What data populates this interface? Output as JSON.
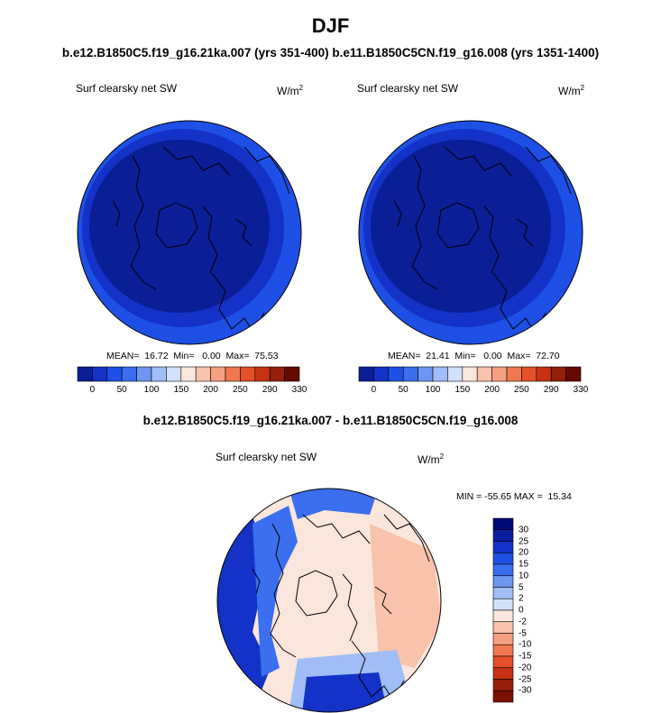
{
  "figure": {
    "title": "DJF",
    "case_line": "b.e12.B1850C5.f19_g16.21ka.007 (yrs 351-400) b.e11.B1850C5CN.f19_g16.008 (yrs 1351-1400)",
    "diff_title": "b.e12.B1850C5.f19_g16.21ka.007 - b.e11.B1850C5CN.f19_g16.008"
  },
  "panels": {
    "left": {
      "variable": "Surf clearsky net SW",
      "units_base": "W/m",
      "units_exp": "2",
      "stats": "MEAN=  16.72  Min=   0.00  Max=  75.53"
    },
    "right": {
      "variable": "Surf clearsky net SW",
      "units_base": "W/m",
      "units_exp": "2",
      "stats": "MEAN=  21.41  Min=   0.00  Max=  72.70"
    },
    "diff": {
      "variable": "Surf clearsky net SW",
      "units_base": "W/m",
      "units_exp": "2",
      "stats": "MIN = -55.65 MAX =  15.34"
    }
  },
  "colorbar_main": {
    "colors": [
      "#0a1e96",
      "#1432c8",
      "#1e50e6",
      "#3c6ef0",
      "#6e96f0",
      "#a0bef5",
      "#d2e1fa",
      "#fbe6dc",
      "#f8c3aa",
      "#f5a082",
      "#f07850",
      "#e65028",
      "#c83214",
      "#961e0a",
      "#640a00"
    ],
    "labels": [
      "0",
      "50",
      "100",
      "150",
      "200",
      "250",
      "290",
      "330"
    ]
  },
  "colorbar_diff": {
    "colors": [
      "#000a78",
      "#0a1ea0",
      "#1432c8",
      "#1e50e6",
      "#3c6ef0",
      "#6e96f0",
      "#a0bef5",
      "#d2e1fa",
      "#fbe6dc",
      "#f8c3aa",
      "#f5a082",
      "#f07850",
      "#e65028",
      "#c83214",
      "#961e0a",
      "#7a1000"
    ],
    "labels": [
      "30",
      "25",
      "20",
      "15",
      "10",
      "5",
      "2",
      "0",
      "-2",
      "-5",
      "-10",
      "-15",
      "-20",
      "-25",
      "-30"
    ]
  },
  "map_colors": {
    "main_outer": "#1e50e6",
    "main_mid": "#1432c8",
    "main_inner": "#0a1e96",
    "diff_background": "#fbe6dc",
    "diff_warm": "#f8c3aa",
    "diff_cool_light": "#a0bef5",
    "diff_cool": "#3c6ef0",
    "diff_cool_dark": "#1432c8",
    "coast": "#000000"
  }
}
